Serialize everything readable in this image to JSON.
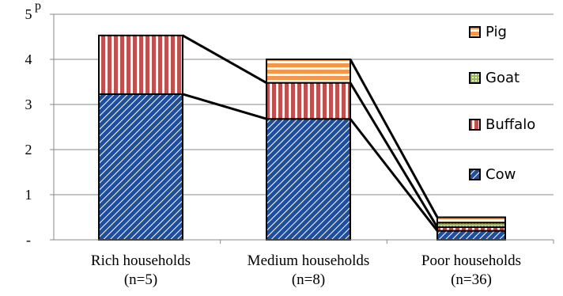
{
  "chart_data": {
    "type": "bar",
    "stacked": true,
    "title": "",
    "xlabel": "",
    "ylabel": "p",
    "ylim": [
      0,
      5
    ],
    "yticks": [
      0,
      1,
      2,
      3,
      4,
      5
    ],
    "ytick_labels": [
      "-",
      "1",
      "2",
      "3",
      "4",
      "5"
    ],
    "grid": true,
    "legend_position": "right",
    "categories": [
      [
        "Rich households",
        "(n=5)"
      ],
      [
        "Medium households",
        "(n=8)"
      ],
      [
        "Poor households",
        "(n=36)"
      ]
    ],
    "series": [
      {
        "name": "Cow",
        "values": [
          3.23,
          2.68,
          0.2
        ],
        "color": "#1f4e9c",
        "pattern": "diag-hatch"
      },
      {
        "name": "Buffalo",
        "values": [
          1.3,
          0.8,
          0.08
        ],
        "color": "#c0504d",
        "pattern": "vertical-stripes"
      },
      {
        "name": "Goat",
        "values": [
          0.0,
          0.0,
          0.1
        ],
        "color": "#9bbb59",
        "pattern": "dots"
      },
      {
        "name": "Pig",
        "values": [
          0.0,
          0.52,
          0.12
        ],
        "color": "#f79646",
        "pattern": "horizontal-stripes"
      }
    ],
    "legend_order": [
      "Pig",
      "Goat",
      "Buffalo",
      "Cow"
    ],
    "connector_lines": true
  }
}
